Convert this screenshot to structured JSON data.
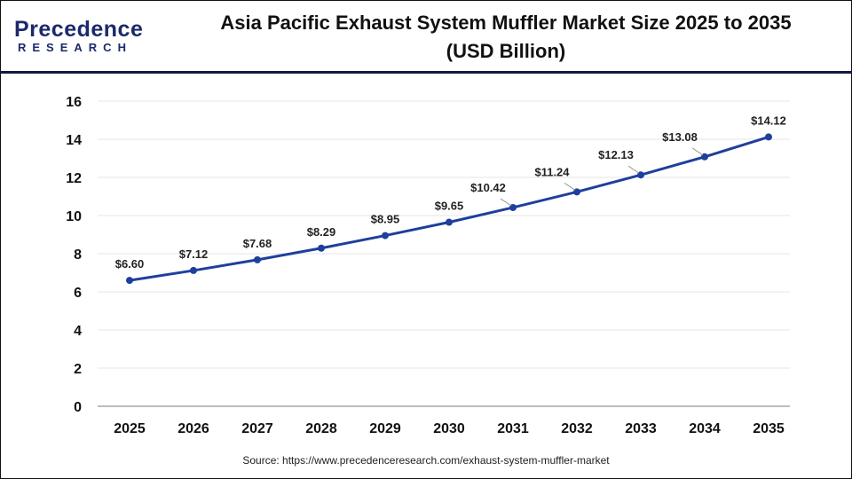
{
  "header": {
    "logo": {
      "top": "Precedence",
      "bottom": "RESEARCH"
    },
    "title_line1": "Asia Pacific Exhaust System Muffler Market Size 2025 to 2035",
    "title_line2": "(USD Billion)"
  },
  "source": "Source: https://www.precedenceresearch.com/exhaust-system-muffler-market",
  "colors": {
    "line": "#1f3f9c",
    "grid": "#e6e6e6",
    "axis": "#bdbdbd",
    "header_rule": "#0f1a3d"
  },
  "chart_data": {
    "type": "line",
    "title": "Asia Pacific Exhaust System Muffler Market Size 2025 to 2035 (USD Billion)",
    "xlabel": "",
    "ylabel": "",
    "categories": [
      "2025",
      "2026",
      "2027",
      "2028",
      "2029",
      "2030",
      "2031",
      "2032",
      "2033",
      "2034",
      "2035"
    ],
    "values": [
      6.6,
      7.12,
      7.68,
      8.29,
      8.95,
      9.65,
      10.42,
      11.24,
      12.13,
      13.08,
      14.12
    ],
    "data_labels": [
      "$6.60",
      "$7.12",
      "$7.68",
      "$8.29",
      "$8.95",
      "$9.65",
      "$10.42",
      "$11.24",
      "$12.13",
      "$13.08",
      "$14.12"
    ],
    "ylim": [
      0,
      16
    ],
    "yticks": [
      0,
      2,
      4,
      6,
      8,
      10,
      12,
      14,
      16
    ],
    "grid": true,
    "legend": "none"
  }
}
